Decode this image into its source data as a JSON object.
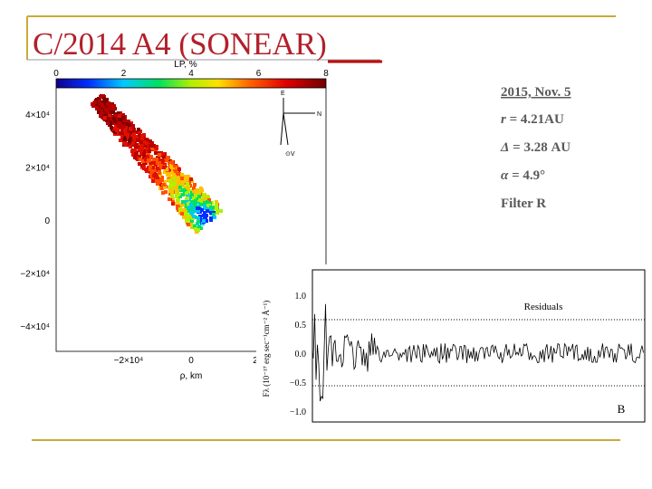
{
  "header": {
    "title": "C/2014 A4 (SONEAR)"
  },
  "observation": {
    "date": "2015, Nov. 5",
    "lines": [
      {
        "symbol": "r",
        "text": " = 4.21AU"
      },
      {
        "symbol": "Δ",
        "text": " = 3.28 AU"
      },
      {
        "symbol": "α",
        "text": " = 4.9°"
      },
      {
        "symbol": "Filter",
        "text": " R"
      }
    ]
  },
  "polarization_map": {
    "colorbar_label": "LP, %",
    "colorbar_ticks": [
      "0",
      "2",
      "4",
      "6",
      "8"
    ],
    "yticks": [
      "4×10⁴",
      "2×10⁴",
      "0",
      "−2×10⁴",
      "−4×10⁴"
    ],
    "xticks": [
      "−2×10⁴",
      "0",
      "2"
    ],
    "xlabel": "ρ, km",
    "compass": [
      "E",
      "N",
      "⊙V"
    ]
  },
  "residuals_plot": {
    "ylabel": "Fλ (10⁻¹⁷ erg sec⁻¹cm⁻² Å⁻¹)",
    "yticks": [
      "1.0",
      "0.5",
      "0.0",
      "−0.5",
      "−1.0"
    ],
    "annotation": "Residuals",
    "panel": "B"
  }
}
